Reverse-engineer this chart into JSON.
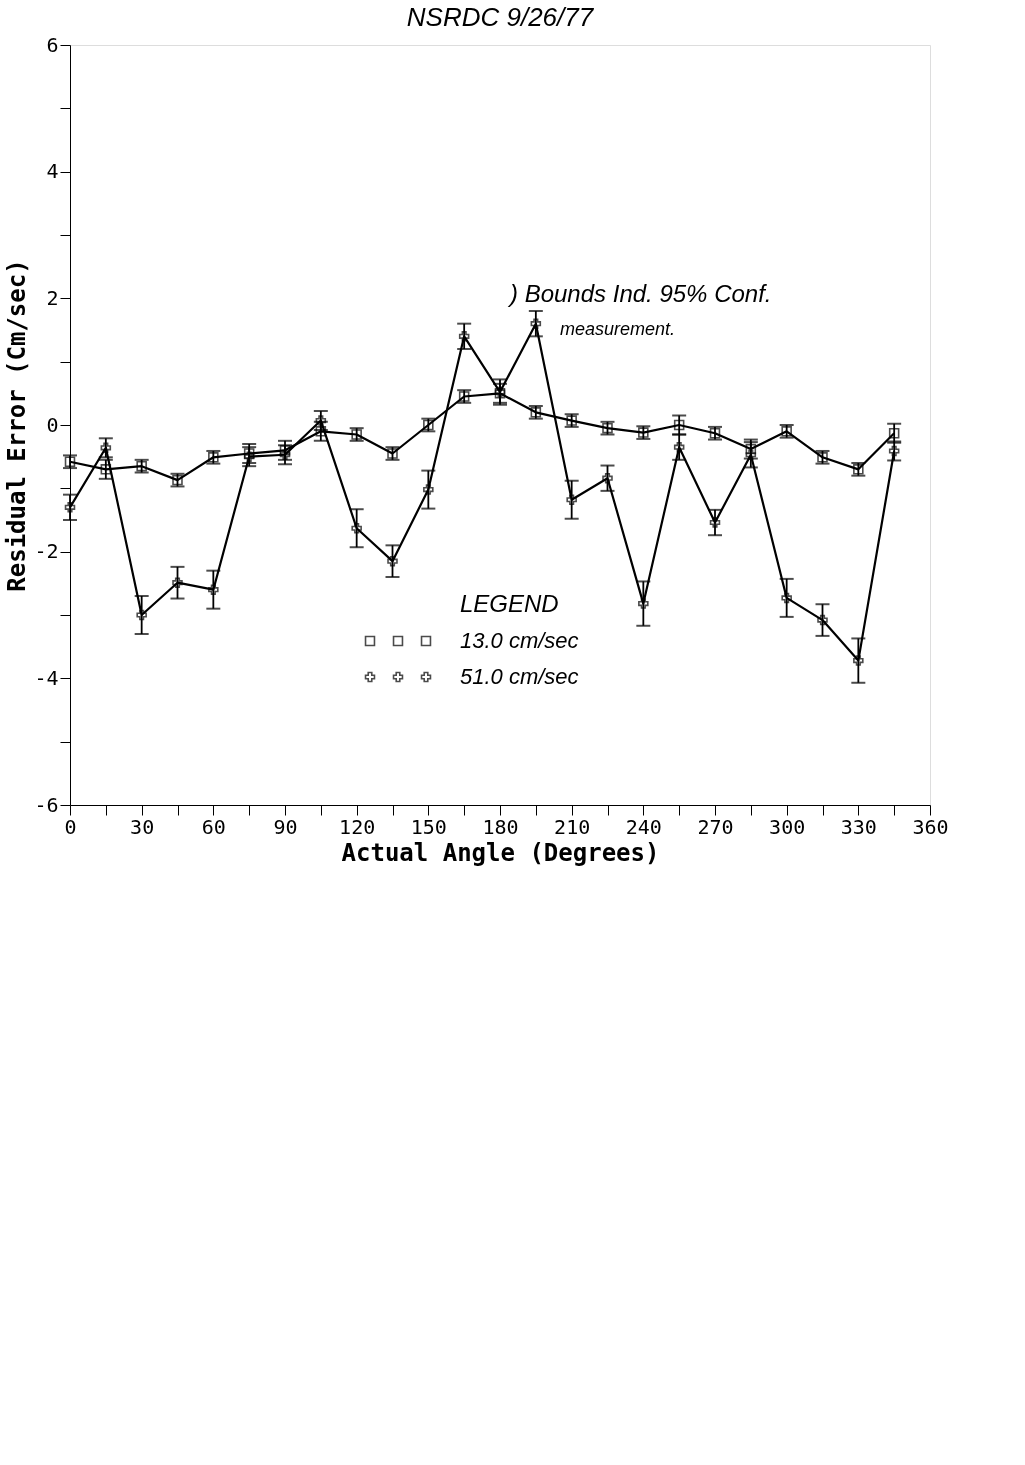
{
  "chart_data": {
    "type": "line",
    "title": "NSRDC 9/26/77",
    "xlabel": "Actual Angle (Degrees)",
    "ylabel": "Residual Error (Cm/sec)",
    "legend_title": "LEGEND",
    "x": [
      0,
      15,
      30,
      45,
      60,
      75,
      90,
      105,
      120,
      135,
      150,
      165,
      180,
      195,
      210,
      225,
      240,
      255,
      270,
      285,
      300,
      315,
      330,
      345
    ],
    "series": [
      {
        "name": "13.0 cm/sec",
        "color": "#000000",
        "marker": "square",
        "values": [
          -0.58,
          -0.7,
          -0.65,
          -0.87,
          -0.51,
          -0.45,
          -0.4,
          -0.1,
          -0.15,
          -0.45,
          0,
          0.45,
          0.5,
          0.2,
          0.07,
          -0.05,
          -0.12,
          0,
          -0.13,
          -0.38,
          -0.1,
          -0.51,
          -0.7,
          -0.13
        ],
        "errors": [
          0.1,
          0.15,
          0.1,
          0.1,
          0.1,
          0.15,
          0.15,
          0.15,
          0.1,
          0.1,
          0.1,
          0.1,
          0.15,
          0.1,
          0.1,
          0.1,
          0.1,
          0.15,
          0.1,
          0.15,
          0.1,
          0.1,
          0.1,
          0.15
        ]
      },
      {
        "name": "51.0 cm/sec",
        "color": "#000000",
        "marker": "cross",
        "values": [
          -1.3,
          -0.36,
          -3.0,
          -2.49,
          -2.6,
          -0.5,
          -0.47,
          0.07,
          -1.63,
          -2.15,
          -1.02,
          1.4,
          0.52,
          1.6,
          -1.18,
          -0.84,
          -2.82,
          -0.35,
          -1.54,
          -0.47,
          -2.73,
          -3.08,
          -3.72,
          -0.41
        ],
        "errors": [
          0.2,
          0.15,
          0.3,
          0.25,
          0.3,
          0.15,
          0.15,
          0.15,
          0.3,
          0.25,
          0.3,
          0.2,
          0.2,
          0.2,
          0.3,
          0.2,
          0.35,
          0.2,
          0.2,
          0.2,
          0.3,
          0.25,
          0.35,
          0.15
        ]
      }
    ],
    "xlim": [
      0,
      360
    ],
    "ylim": [
      -6,
      6
    ],
    "xticks": [
      0,
      {
        "value": 15,
        "label": null
      },
      30,
      {
        "value": 45,
        "label": null
      },
      60,
      {
        "value": 75,
        "label": null
      },
      90,
      {
        "value": 105,
        "label": null
      },
      120,
      {
        "value": 135,
        "label": null
      },
      150,
      {
        "value": 165,
        "label": null
      },
      180,
      {
        "value": 195,
        "label": null
      },
      210,
      {
        "value": 225,
        "label": null
      },
      240,
      {
        "value": 255,
        "label": null
      },
      270,
      {
        "value": 285,
        "label": null
      },
      300,
      {
        "value": 315,
        "label": null
      },
      330,
      {
        "value": 345,
        "label": null
      },
      360
    ],
    "yticks": [
      -6,
      {
        "value": -5,
        "label": null
      },
      -4,
      {
        "value": -3,
        "label": null
      },
      -2,
      {
        "value": -1,
        "label": null
      },
      0,
      {
        "value": 1,
        "label": null
      },
      2,
      {
        "value": 3,
        "label": null
      },
      4,
      {
        "value": 5,
        "label": null
      },
      6
    ],
    "annotations": [
      ") Bounds Ind. 95% Conf.",
      "measurement."
    ],
    "legend": "bottom",
    "grid": false
  }
}
